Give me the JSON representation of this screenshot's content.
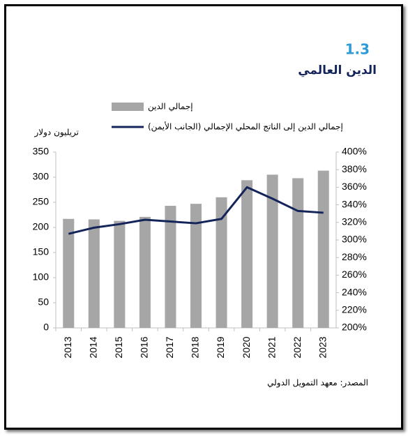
{
  "chart_data": {
    "type": "bar",
    "title": "1.3",
    "subtitle": "الدين العالمي",
    "y_label": "تريليون دولار",
    "source": "المصدر: معهد التمويل الدولي",
    "categories": [
      "2013",
      "2014",
      "2015",
      "2016",
      "2017",
      "2018",
      "2019",
      "2020",
      "2021",
      "2022",
      "2023"
    ],
    "series": [
      {
        "name": "إجمالي الدين",
        "type": "bar",
        "color": "#a6a6a6",
        "values": [
          217,
          216,
          213,
          221,
          243,
          247,
          260,
          294,
          305,
          298,
          313
        ]
      },
      {
        "name": "إجمالي الدين إلى الناتج المحلي الإجمالي (الجانب الأيمن)",
        "type": "line",
        "axis": "y2",
        "color": "#14245a",
        "values": [
          307,
          314,
          318,
          323,
          321,
          319,
          324,
          360,
          347,
          333,
          331
        ]
      }
    ],
    "ylim": [
      0,
      350
    ],
    "yticks": [
      0,
      50,
      100,
      150,
      200,
      250,
      300,
      350
    ],
    "y2lim": [
      200,
      400
    ],
    "y2ticks": [
      {
        "value": 200,
        "label": "200%"
      },
      {
        "value": 220,
        "label": "220%"
      },
      {
        "value": 240,
        "label": "240%"
      },
      {
        "value": 260,
        "label": "260%"
      },
      {
        "value": 280,
        "label": "280%"
      },
      {
        "value": 300,
        "label": "300%"
      },
      {
        "value": 320,
        "label": "320%"
      },
      {
        "value": 340,
        "label": "340%"
      },
      {
        "value": 360,
        "label": "360%"
      },
      {
        "value": 380,
        "label": "380%"
      },
      {
        "value": 400,
        "label": "400%"
      }
    ]
  }
}
